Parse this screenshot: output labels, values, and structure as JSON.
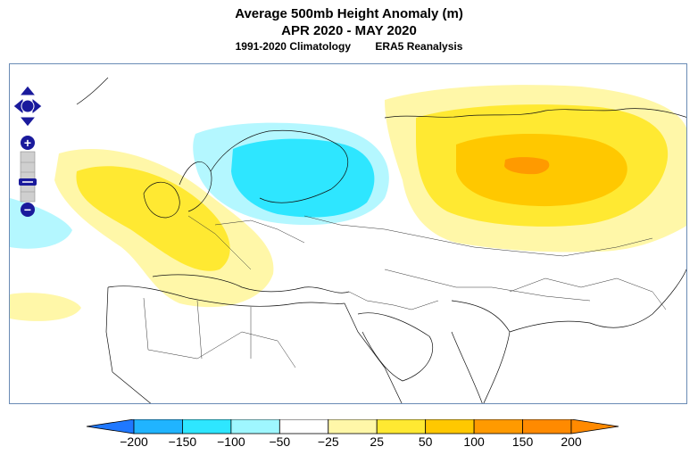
{
  "header": {
    "title": "Average 500mb Height Anomaly (m)",
    "period": "APR 2020 - MAY 2020",
    "climatology": "1991-2020 Climatology",
    "dataset": "ERA5 Reanalysis"
  },
  "colorbar": {
    "ticks": [
      "−200",
      "−150",
      "−100",
      "−50",
      "−25",
      "25",
      "50",
      "100",
      "150",
      "200"
    ],
    "colors": [
      "#1f78ff",
      "#20b4ff",
      "#2ee6ff",
      "#9ff7ff",
      "#ffffff",
      "#fff7a8",
      "#ffe932",
      "#ffc800",
      "#ff9a00",
      "#ff8a00"
    ]
  },
  "map": {
    "anomaly_colors": {
      "pos25": "#fff7a8",
      "pos50": "#ffe932",
      "pos100": "#ffc800",
      "pos150": "#ff9a00",
      "neg25": "#b4f7ff",
      "neg50": "#2ee6ff"
    },
    "controls": {
      "pan": "pan-arrows-icon",
      "zoom_in": "+",
      "zoom_out": "−"
    }
  }
}
